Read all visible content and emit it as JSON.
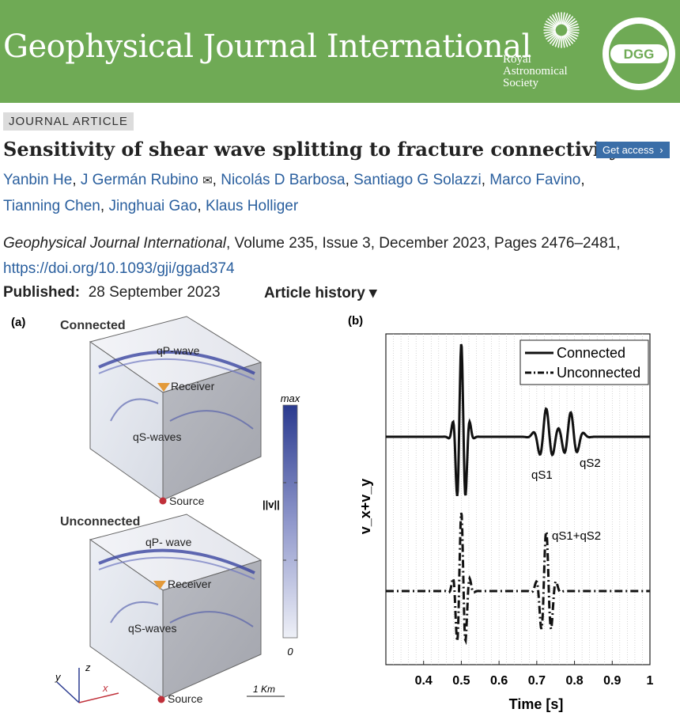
{
  "banner": {
    "journal_title": "Geophysical Journal International",
    "ras_lines": [
      "Royal",
      "Astronomical",
      "Society"
    ],
    "dgg_logo_text": "DGG",
    "background_color": "#6faa55"
  },
  "article": {
    "type_badge": "JOURNAL ARTICLE",
    "title": "Sensitivity of shear wave splitting to fracture connectivity",
    "get_access_label": "Get access",
    "authors": [
      "Yanbin He",
      "J Germán Rubino",
      "Nicolás D Barbosa",
      "Santiago G Solazzi",
      "Marco Favino",
      "Tianning Chen",
      "Jinghuai Gao",
      "Klaus Holliger"
    ],
    "corresponding_icon": "envelope-icon",
    "journal_name": "Geophysical Journal International",
    "citation_rest": ", Volume 235, Issue 3, December 2023, Pages 2476–2481,",
    "doi": "https://doi.org/10.1093/gji/ggad374",
    "published_label": "Published:",
    "published_date": "28 September 2023",
    "history_label": "Article history ▾"
  },
  "figure": {
    "panel_a": {
      "label": "(a)",
      "top_title": "Connected",
      "bottom_title": "Unconnected",
      "qp_top": "qP-wave",
      "qp_bottom": "qP- wave",
      "qs": "qS-waves",
      "receiver": "Receiver",
      "source": "Source",
      "colorbar_max": "max",
      "colorbar_min": "0",
      "colorbar_label": "||v||",
      "scale_label": "1 Km",
      "axis_x": "x",
      "axis_y": "y",
      "axis_z": "z"
    },
    "panel_b": {
      "label": "(b)",
      "ylabel": "v_x+v_y",
      "xlabel": "Time [s]",
      "annotations": [
        "qS1",
        "qS2",
        "qS1+qS2"
      ]
    }
  },
  "chart_data": {
    "type": "line",
    "title": "",
    "xlabel": "Time [s]",
    "ylabel": "v_x+v_y",
    "xlim": [
      0.3,
      1.0
    ],
    "xticks": [
      "0.4",
      "0.5",
      "0.6",
      "0.7",
      "0.8",
      "0.9",
      "1"
    ],
    "grid": "vertical dotted lines",
    "legend_position": "top-right",
    "series": [
      {
        "name": "Connected",
        "style": "solid",
        "pulses": [
          {
            "t": 0.5,
            "amp": 1.0,
            "width": 0.012
          },
          {
            "t": 0.725,
            "amp": 0.3,
            "width": 0.018
          },
          {
            "t": 0.79,
            "amp": 0.26,
            "width": 0.018
          }
        ]
      },
      {
        "name": "Unconnected",
        "style": "dashed",
        "pulses": [
          {
            "t": 0.5,
            "amp": 0.95,
            "width": 0.012
          },
          {
            "t": 0.725,
            "amp": 0.72,
            "width": 0.014
          }
        ]
      }
    ]
  }
}
